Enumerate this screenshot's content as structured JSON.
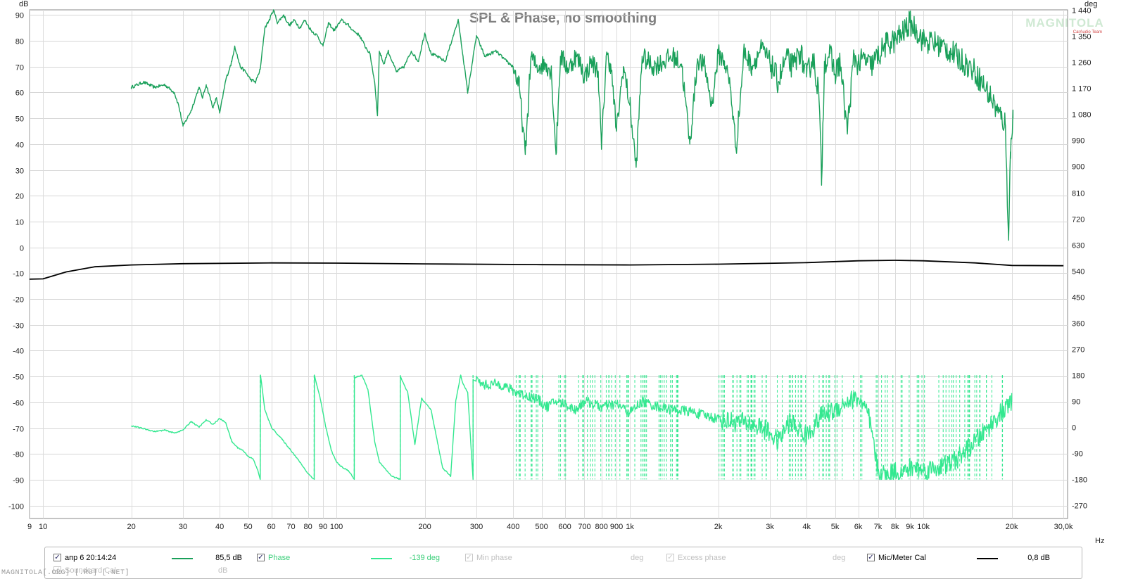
{
  "chart_data": {
    "type": "line",
    "title": "SPL & Phase, no smoothing",
    "x_axis": {
      "scale": "log",
      "range": [
        9,
        31000
      ],
      "unit": "Hz",
      "ticks": [
        9,
        10,
        20,
        30,
        40,
        50,
        60,
        70,
        80,
        90,
        100,
        200,
        300,
        400,
        500,
        600,
        700,
        800,
        900,
        1000,
        2000,
        3000,
        4000,
        5000,
        6000,
        7000,
        8000,
        9000,
        10000,
        20000,
        30000
      ],
      "tick_labels": [
        "9",
        "10",
        "20",
        "30",
        "40",
        "50",
        "60",
        "70",
        "80",
        "90",
        "100",
        "200",
        "300",
        "400",
        "500",
        "600",
        "700",
        "800",
        "900",
        "1k",
        "2k",
        "3k",
        "4k",
        "5k",
        "6k",
        "7k",
        "8k",
        "9k",
        "10k",
        "20k",
        "30,0k"
      ]
    },
    "y_left": {
      "unit": "dB",
      "range": [
        -105,
        92
      ],
      "ticks": [
        90,
        80,
        70,
        60,
        50,
        40,
        30,
        20,
        10,
        0,
        -10,
        -20,
        -30,
        -40,
        -50,
        -60,
        -70,
        -80,
        -90,
        -100
      ]
    },
    "y_right": {
      "unit": "deg",
      "range": [
        -315,
        1440
      ],
      "ticks": [
        1440,
        1350,
        1260,
        1170,
        1080,
        990,
        900,
        810,
        720,
        630,
        540,
        450,
        360,
        270,
        180,
        90,
        0,
        -90,
        -180,
        -270
      ],
      "tick_labels": [
        "1 440",
        "1 350",
        "1 260",
        "1 170",
        "1 080",
        "990",
        "900",
        "810",
        "720",
        "630",
        "540",
        "450",
        "360",
        "270",
        "180",
        "90",
        "0",
        "-90",
        "-180",
        "-270"
      ]
    },
    "grid": true,
    "series": [
      {
        "name": "SPL",
        "axis": "left",
        "color": "#1aa05a",
        "points": [
          [
            20,
            62
          ],
          [
            22,
            64
          ],
          [
            24,
            62
          ],
          [
            26,
            63
          ],
          [
            28,
            60
          ],
          [
            29,
            55
          ],
          [
            30,
            47
          ],
          [
            32,
            53
          ],
          [
            34,
            62
          ],
          [
            35,
            58
          ],
          [
            36,
            63
          ],
          [
            38,
            54
          ],
          [
            39,
            58
          ],
          [
            40,
            52
          ],
          [
            42,
            65
          ],
          [
            44,
            72
          ],
          [
            45,
            78
          ],
          [
            47,
            70
          ],
          [
            49,
            68
          ],
          [
            51,
            65
          ],
          [
            53,
            64
          ],
          [
            55,
            69
          ],
          [
            57,
            85
          ],
          [
            59,
            88
          ],
          [
            61,
            92
          ],
          [
            63,
            87
          ],
          [
            66,
            90
          ],
          [
            69,
            86
          ],
          [
            72,
            88
          ],
          [
            75,
            85
          ],
          [
            78,
            88
          ],
          [
            82,
            84
          ],
          [
            86,
            82
          ],
          [
            90,
            78
          ],
          [
            94,
            87
          ],
          [
            98,
            84
          ],
          [
            104,
            88
          ],
          [
            110,
            86
          ],
          [
            114,
            84
          ],
          [
            120,
            82
          ],
          [
            125,
            78
          ],
          [
            130,
            75
          ],
          [
            135,
            64
          ],
          [
            138,
            51
          ],
          [
            140,
            76
          ],
          [
            145,
            71
          ],
          [
            150,
            76
          ],
          [
            160,
            68
          ],
          [
            170,
            70
          ],
          [
            180,
            76
          ],
          [
            190,
            72
          ],
          [
            200,
            83
          ],
          [
            210,
            75
          ],
          [
            220,
            74
          ],
          [
            235,
            72
          ],
          [
            250,
            82
          ],
          [
            260,
            88
          ],
          [
            270,
            74
          ],
          [
            280,
            60
          ],
          [
            300,
            82
          ],
          [
            320,
            74
          ],
          [
            350,
            76
          ],
          [
            380,
            72
          ],
          [
            400,
            70
          ],
          [
            420,
            62
          ],
          [
            440,
            36
          ],
          [
            460,
            74
          ],
          [
            480,
            70
          ],
          [
            520,
            71
          ],
          [
            540,
            68
          ],
          [
            560,
            36
          ],
          [
            580,
            74
          ],
          [
            620,
            69
          ],
          [
            650,
            74
          ],
          [
            680,
            71
          ],
          [
            700,
            66
          ],
          [
            740,
            72
          ],
          [
            780,
            68
          ],
          [
            800,
            38
          ],
          [
            830,
            74
          ],
          [
            860,
            71
          ],
          [
            900,
            45
          ],
          [
            950,
            70
          ],
          [
            1000,
            55
          ],
          [
            1050,
            31
          ],
          [
            1100,
            74
          ],
          [
            1200,
            70
          ],
          [
            1300,
            72
          ],
          [
            1400,
            74
          ],
          [
            1500,
            71
          ],
          [
            1600,
            40
          ],
          [
            1700,
            73
          ],
          [
            1800,
            70
          ],
          [
            1900,
            55
          ],
          [
            2000,
            75
          ],
          [
            2100,
            72
          ],
          [
            2200,
            62
          ],
          [
            2300,
            38
          ],
          [
            2450,
            76
          ],
          [
            2600,
            70
          ],
          [
            2800,
            77
          ],
          [
            3000,
            72
          ],
          [
            3200,
            64
          ],
          [
            3400,
            73
          ],
          [
            3600,
            70
          ],
          [
            3800,
            76
          ],
          [
            4000,
            66
          ],
          [
            4200,
            74
          ],
          [
            4400,
            60
          ],
          [
            4500,
            26
          ],
          [
            4600,
            72
          ],
          [
            4800,
            75
          ],
          [
            5000,
            67
          ],
          [
            5200,
            72
          ],
          [
            5500,
            45
          ],
          [
            5800,
            74
          ],
          [
            6000,
            71
          ],
          [
            6300,
            73
          ],
          [
            6600,
            70
          ],
          [
            7000,
            74
          ],
          [
            7500,
            79
          ],
          [
            8000,
            80
          ],
          [
            8500,
            83
          ],
          [
            9000,
            87
          ],
          [
            9500,
            84
          ],
          [
            10000,
            80
          ],
          [
            11000,
            79
          ],
          [
            12000,
            77
          ],
          [
            13000,
            74
          ],
          [
            14000,
            71
          ],
          [
            15000,
            68
          ],
          [
            16000,
            63
          ],
          [
            17000,
            58
          ],
          [
            18000,
            52
          ],
          [
            19000,
            48
          ],
          [
            19500,
            5
          ],
          [
            19800,
            37
          ],
          [
            20000,
            42
          ],
          [
            20200,
            50
          ]
        ]
      },
      {
        "name": "Phase",
        "axis": "right",
        "color": "#34e890",
        "points": [
          [
            20,
            5
          ],
          [
            22,
            -5
          ],
          [
            24,
            -15
          ],
          [
            26,
            -10
          ],
          [
            28,
            -20
          ],
          [
            30,
            -10
          ],
          [
            32,
            20
          ],
          [
            34,
            0
          ],
          [
            36,
            25
          ],
          [
            38,
            10
          ],
          [
            40,
            30
          ],
          [
            42,
            15
          ],
          [
            44,
            -50
          ],
          [
            46,
            -70
          ],
          [
            48,
            -80
          ],
          [
            50,
            -100
          ],
          [
            52,
            -110
          ],
          [
            54,
            -150
          ],
          [
            55,
            -180
          ],
          [
            55.1,
            180
          ],
          [
            57,
            60
          ],
          [
            60,
            0
          ],
          [
            65,
            -40
          ],
          [
            70,
            -80
          ],
          [
            75,
            -120
          ],
          [
            80,
            -160
          ],
          [
            84,
            -180
          ],
          [
            84.1,
            180
          ],
          [
            88,
            100
          ],
          [
            92,
            0
          ],
          [
            96,
            -80
          ],
          [
            100,
            -120
          ],
          [
            105,
            -140
          ],
          [
            110,
            -150
          ],
          [
            115,
            -180
          ],
          [
            115.1,
            170
          ],
          [
            122,
            180
          ],
          [
            128,
            130
          ],
          [
            135,
            -50
          ],
          [
            140,
            -120
          ],
          [
            148,
            -150
          ],
          [
            155,
            -170
          ],
          [
            165,
            -180
          ],
          [
            165.1,
            175
          ],
          [
            175,
            120
          ],
          [
            185,
            -60
          ],
          [
            195,
            100
          ],
          [
            210,
            60
          ],
          [
            230,
            -140
          ],
          [
            245,
            -170
          ],
          [
            255,
            90
          ],
          [
            265,
            180
          ],
          [
            270,
            150
          ],
          [
            280,
            120
          ],
          [
            292,
            -180
          ],
          [
            292.1,
            165
          ],
          [
            320,
            145
          ],
          [
            360,
            150
          ],
          [
            400,
            125
          ],
          [
            440,
            110
          ],
          [
            480,
            100
          ],
          [
            520,
            70
          ],
          [
            560,
            90
          ],
          [
            600,
            80
          ],
          [
            650,
            60
          ],
          [
            700,
            90
          ],
          [
            800,
            70
          ],
          [
            900,
            80
          ],
          [
            1000,
            50
          ],
          [
            1100,
            90
          ],
          [
            1200,
            75
          ],
          [
            1400,
            60
          ],
          [
            1600,
            55
          ],
          [
            1800,
            40
          ],
          [
            2000,
            30
          ],
          [
            2200,
            20
          ],
          [
            2500,
            15
          ],
          [
            2800,
            0
          ],
          [
            3000,
            -20
          ],
          [
            3200,
            -50
          ],
          [
            3500,
            20
          ],
          [
            4000,
            -30
          ],
          [
            4500,
            40
          ],
          [
            5000,
            60
          ],
          [
            5500,
            90
          ],
          [
            6000,
            100
          ],
          [
            6500,
            40
          ],
          [
            7000,
            -150
          ],
          [
            7500,
            -170
          ],
          [
            8000,
            -150
          ],
          [
            8500,
            -160
          ],
          [
            9000,
            -140
          ],
          [
            9500,
            -140
          ],
          [
            10000,
            -150
          ],
          [
            11000,
            -140
          ],
          [
            12000,
            -130
          ],
          [
            13000,
            -110
          ],
          [
            14000,
            -80
          ],
          [
            15000,
            -50
          ],
          [
            16000,
            -20
          ],
          [
            17000,
            10
          ],
          [
            18000,
            40
          ],
          [
            19000,
            60
          ],
          [
            20000,
            90
          ]
        ]
      },
      {
        "name": "Mic/Meter Cal",
        "axis": "left",
        "color": "#000000",
        "points": [
          [
            9,
            -12.3
          ],
          [
            10,
            -12.2
          ],
          [
            12,
            -9.5
          ],
          [
            15,
            -7.5
          ],
          [
            20,
            -6.8
          ],
          [
            30,
            -6.3
          ],
          [
            60,
            -6
          ],
          [
            100,
            -6.1
          ],
          [
            200,
            -6.4
          ],
          [
            500,
            -6.7
          ],
          [
            1000,
            -6.8
          ],
          [
            2000,
            -6.5
          ],
          [
            4000,
            -5.9
          ],
          [
            6000,
            -5.2
          ],
          [
            8000,
            -5.0
          ],
          [
            10000,
            -5.2
          ],
          [
            15000,
            -6.0
          ],
          [
            20000,
            -7.0
          ],
          [
            30000,
            -7.1
          ]
        ]
      }
    ]
  },
  "legend": {
    "items": [
      {
        "label": "апр 6 20:14:24",
        "value": "85,5 dB",
        "checked": true,
        "enabled": true,
        "color": "#1aa05a",
        "label_color": "#202020"
      },
      {
        "label": "Phase",
        "value": "-139 deg",
        "checked": true,
        "enabled": true,
        "color": "#34e890",
        "label_color": "#3ccf7a"
      },
      {
        "label": "Min phase",
        "value": "deg",
        "checked": false,
        "enabled": false,
        "color": "",
        "label_color": "#c0c0c0"
      },
      {
        "label": "Excess phase",
        "value": "deg",
        "checked": false,
        "enabled": false,
        "color": "",
        "label_color": "#c0c0c0"
      },
      {
        "label": "Mic/Meter Cal",
        "value": "0,8 dB",
        "checked": true,
        "enabled": true,
        "color": "#000000",
        "label_color": "#202020"
      },
      {
        "label": "Soundcard Cal",
        "value": "dB",
        "checked": false,
        "enabled": false,
        "color": "",
        "label_color": "#c0c0c0"
      }
    ]
  },
  "watermark": "MAGNITOLA[.ORG] [.RU] [.NET]",
  "logo": {
    "main": "MAGNITOLA",
    "sub": "CarAudio Team"
  }
}
